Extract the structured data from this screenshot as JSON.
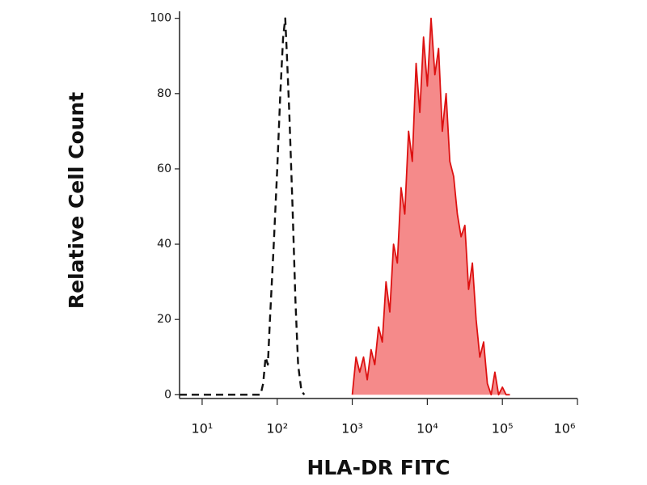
{
  "chart_data": {
    "type": "histogram-overlay",
    "x_label": "HLA-DR FITC",
    "y_label": "Relative Cell Count",
    "x_scale": "log",
    "xlim": [
      5,
      1000000
    ],
    "ylim": [
      -1,
      101
    ],
    "xticks": [
      {
        "value": 10,
        "label": "10¹"
      },
      {
        "value": 100,
        "label": "10²"
      },
      {
        "value": 1000,
        "label": "10³"
      },
      {
        "value": 10000,
        "label": "10⁴"
      },
      {
        "value": 100000,
        "label": "10⁵"
      },
      {
        "value": 1000000,
        "label": "10⁶"
      }
    ],
    "yticks": [
      0,
      20,
      40,
      60,
      80,
      100
    ],
    "series": [
      {
        "color": "#111111",
        "line_style": "dashed",
        "fill": null,
        "x": [
          5,
          60,
          65,
          70,
          75,
          80,
          90,
          100,
          110,
          120,
          128,
          135,
          145,
          160,
          175,
          190,
          210,
          230
        ],
        "values": [
          0,
          0,
          3,
          10,
          8,
          20,
          40,
          60,
          80,
          95,
          100,
          90,
          75,
          50,
          25,
          8,
          1,
          0
        ]
      },
      {
        "color": "#dd1111",
        "line_style": "solid",
        "fill": "#f58a8a",
        "x": [
          1000,
          1122,
          1259,
          1413,
          1585,
          1778,
          1995,
          2239,
          2512,
          2818,
          3162,
          3548,
          3981,
          4467,
          5012,
          5623,
          6310,
          7079,
          7943,
          8913,
          10000,
          11220,
          12589,
          14125,
          15849,
          17783,
          19953,
          22387,
          25119,
          28184,
          31623,
          35481,
          39811,
          44668,
          50119,
          56234,
          63096,
          70795,
          79433,
          89125,
          100000,
          112202,
          125893
        ],
        "values": [
          0,
          10,
          6,
          10,
          4,
          12,
          8,
          18,
          14,
          30,
          22,
          40,
          35,
          55,
          48,
          70,
          62,
          88,
          75,
          95,
          82,
          100,
          85,
          92,
          70,
          80,
          62,
          58,
          48,
          42,
          45,
          28,
          35,
          20,
          10,
          14,
          3,
          0,
          6,
          0,
          2,
          0,
          0
        ]
      }
    ]
  }
}
